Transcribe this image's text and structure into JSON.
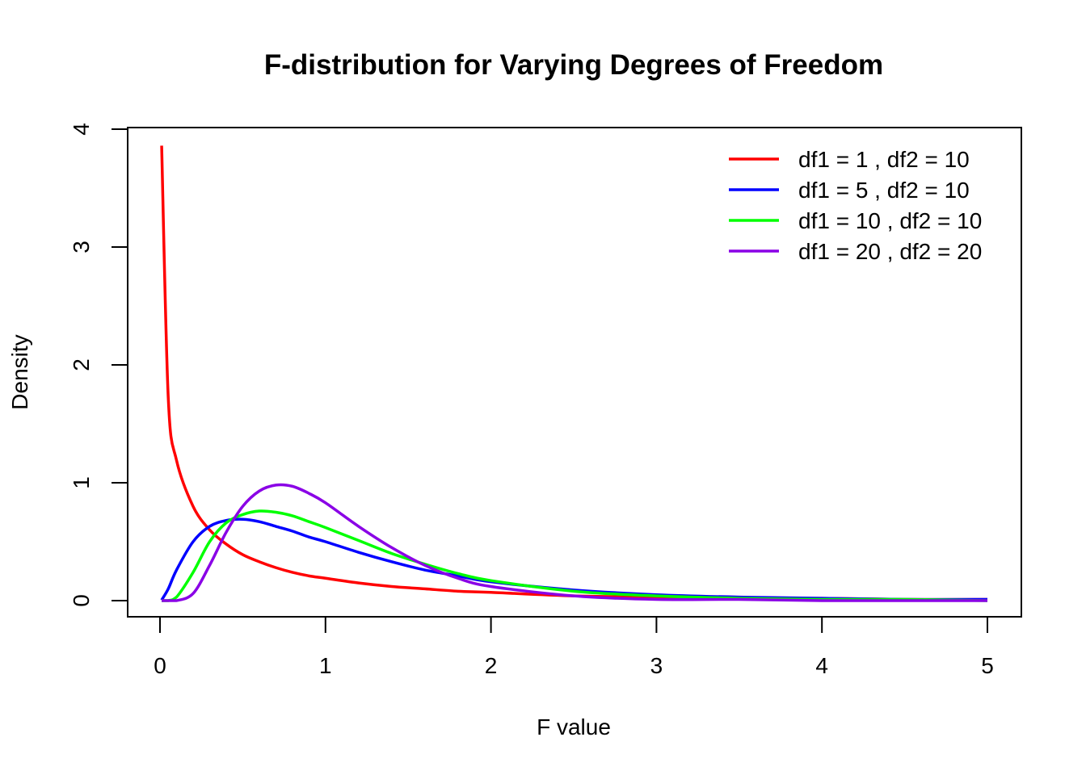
{
  "chart_data": {
    "type": "line",
    "title": "F-distribution for Varying Degrees of Freedom",
    "xlabel": "F value",
    "ylabel": "Density",
    "xlim": [
      0,
      5
    ],
    "ylim": [
      0,
      4
    ],
    "x_ticks": [
      "0",
      "1",
      "2",
      "3",
      "4",
      "5"
    ],
    "y_ticks": [
      "0",
      "1",
      "2",
      "3",
      "4"
    ],
    "grid": false,
    "legend_position": "top-right",
    "x": [
      0.01,
      0.05,
      0.1,
      0.2,
      0.3,
      0.4,
      0.5,
      0.6,
      0.7,
      0.8,
      0.9,
      1.0,
      1.2,
      1.4,
      1.6,
      1.8,
      2.0,
      2.5,
      3.0,
      3.5,
      4.0,
      4.5,
      5.0
    ],
    "series": [
      {
        "name": "df1 = 1 , df2 = 10",
        "color": "#FF0000",
        "values": [
          3.86,
          1.72,
          1.19,
          0.8,
          0.6,
          0.48,
          0.39,
          0.33,
          0.28,
          0.24,
          0.21,
          0.19,
          0.15,
          0.12,
          0.1,
          0.08,
          0.07,
          0.04,
          0.03,
          0.02,
          0.02,
          0.01,
          0.01
        ]
      },
      {
        "name": "df1 = 5 , df2 = 10",
        "color": "#0000FF",
        "values": [
          0.005,
          0.1,
          0.26,
          0.5,
          0.63,
          0.68,
          0.69,
          0.67,
          0.63,
          0.59,
          0.54,
          0.5,
          0.41,
          0.33,
          0.26,
          0.21,
          0.16,
          0.09,
          0.05,
          0.03,
          0.02,
          0.01,
          0.01
        ]
      },
      {
        "name": "df1 = 10 , df2 = 10",
        "color": "#00FF00",
        "values": [
          0.0,
          0.0,
          0.03,
          0.24,
          0.5,
          0.66,
          0.73,
          0.76,
          0.75,
          0.72,
          0.67,
          0.62,
          0.51,
          0.4,
          0.31,
          0.23,
          0.17,
          0.08,
          0.04,
          0.02,
          0.01,
          0.01,
          0.0
        ]
      },
      {
        "name": "df1 = 20 , df2 = 20",
        "color": "#8A00E6",
        "values": [
          0.0,
          0.0,
          0.0,
          0.06,
          0.3,
          0.58,
          0.8,
          0.93,
          0.98,
          0.97,
          0.91,
          0.83,
          0.63,
          0.45,
          0.3,
          0.19,
          0.12,
          0.04,
          0.01,
          0.01,
          0.0,
          0.0,
          0.0
        ]
      }
    ]
  }
}
